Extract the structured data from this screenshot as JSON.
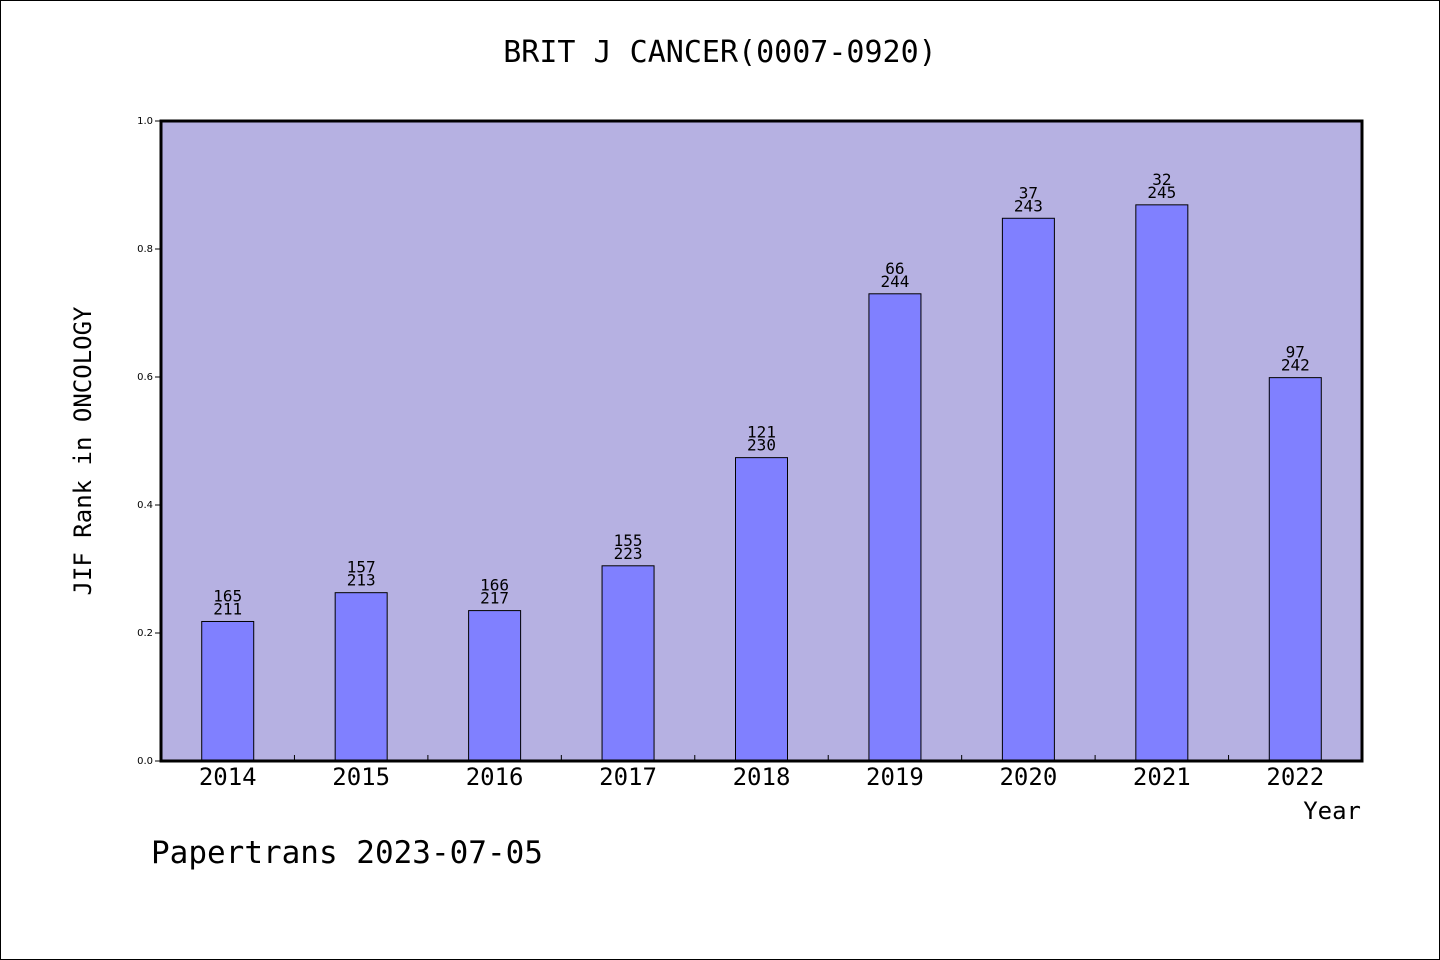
{
  "chart_data": {
    "type": "bar",
    "title": "BRIT J CANCER(0007-0920)",
    "xlabel": "Year",
    "ylabel": "JIF Rank in ONCOLOGY",
    "ylim": [
      0,
      1.0
    ],
    "yticks": [
      "0.0",
      "0.2",
      "0.4",
      "0.6",
      "0.8",
      "1.0"
    ],
    "grid": false,
    "categories": [
      "2014",
      "2015",
      "2016",
      "2017",
      "2018",
      "2019",
      "2020",
      "2021",
      "2022"
    ],
    "values": [
      0.218,
      0.263,
      0.235,
      0.305,
      0.474,
      0.73,
      0.848,
      0.869,
      0.599
    ],
    "rank_labels": [
      "165",
      "157",
      "166",
      "155",
      "121",
      "66",
      "37",
      "32",
      "97"
    ],
    "total_labels": [
      "211",
      "213",
      "217",
      "223",
      "230",
      "244",
      "243",
      "245",
      "242"
    ],
    "colors": {
      "plot_background": "#b6b1e2",
      "bar": "#8080ff",
      "axis": "#000000"
    }
  },
  "footer": {
    "text": "Papertrans 2023-07-05"
  }
}
